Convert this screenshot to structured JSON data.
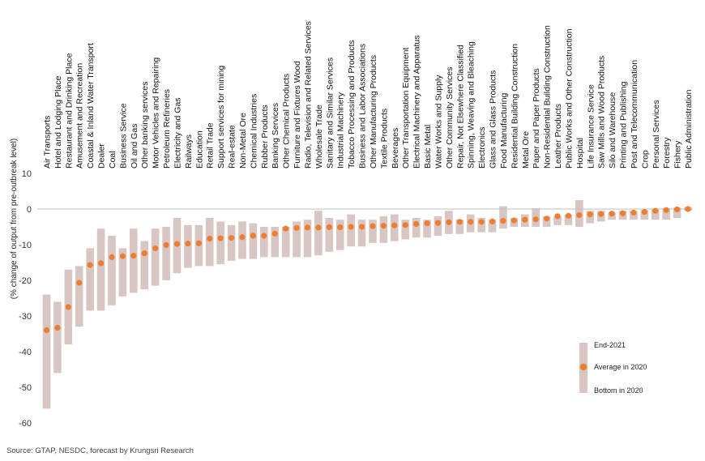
{
  "chart_data": {
    "type": "range-dot",
    "ylabel": "(% change of output from pre-outbreak level)",
    "ylim": [
      -60,
      10
    ],
    "yticks": [
      10,
      0,
      -10,
      -20,
      -30,
      -40,
      -50,
      -60
    ],
    "grid": false,
    "legend_position": "bottom-right",
    "legend": {
      "end": "End-2021",
      "avg": "Average in 2020",
      "bottom": "Bottom in 2020"
    },
    "colors": {
      "range": "#d8c6c4",
      "avg": "#ed7d31",
      "axis": "#bfbfbf"
    },
    "source": "Source:  GTAP, NESDC, forecast by Krungsri Research",
    "categories": [
      "Air Transports",
      "Hotel and Lodging Place",
      "Restaurant and Drinking Place",
      "Amusement and Recreation",
      "Coastal & Inland Water Transport",
      "Dealer",
      "Coal",
      "Business Service",
      "Oil and Gas",
      "Other banking services",
      "Motor Vehicles and Repairing",
      "Petroleum Refineries",
      "Electricity and Gas",
      "Railways",
      "Education",
      "Retail Trade",
      "Support services for mining",
      "Real-estate",
      "Non-Metal Ore",
      "Chemical Industries",
      "Rubber Products",
      "Banking Services",
      "Other Chemical Products",
      "Furniture and Fixtures Wood",
      "Radio, Television and Related Services",
      "Wholesale Trade",
      "Sanitary and Similar Services",
      "Industrial Machinery",
      "Tobacco Processing and Products",
      "Business and Labor Associations",
      "Other Manufacturing Products",
      "Textile Products",
      "Beverages",
      "Other Transportation Equipment",
      "Electrical Machinery and Apparatus",
      "Basic Metal",
      "Water Works and Supply",
      "Other Community Services",
      "Repair, Not Elsewhere Classified",
      "Spinning, Weaving and Bleaching",
      "Electronics",
      "Glass and Glass Products",
      "Food Manufacturing",
      "Residential Building Construction",
      "Metal Ore",
      "Paper and Paper Products",
      "Non-Residential Building Construction",
      "Leather Products",
      "Public Works and Other Construction",
      "Hospital",
      "Life Insurance Service",
      "Saw Mills and Wood Products",
      "Silo and Warehouse",
      "Printing and Publishing",
      "Post and Telecommunication",
      "Crop",
      "Personal Services",
      "Forestry",
      "Fishery",
      "Public Administration"
    ],
    "series": [
      {
        "name": "End-2021",
        "values": [
          -24,
          -26,
          -17,
          -16,
          -11,
          -5.5,
          -7.5,
          -11,
          -5.5,
          -9,
          -5.5,
          -5,
          -2.5,
          -4.5,
          -4.5,
          -2.5,
          -3.5,
          -4.5,
          -3.5,
          -4,
          -5,
          -5,
          -5,
          -3.5,
          -3,
          -0.5,
          -2.5,
          -3,
          -1.5,
          -3,
          -3,
          -2,
          -1.5,
          -3,
          -2.5,
          -3,
          -2,
          -0.5,
          -3,
          -1.5,
          -2.5,
          -3,
          0.8,
          -2.5,
          -1.5,
          0.2,
          -2,
          -2,
          -1.5,
          2.5,
          -0.5,
          -0.5,
          -1,
          -0.5,
          -0.5,
          -0.3,
          0,
          0.2,
          0.4,
          0.6
        ]
      },
      {
        "name": "Average in 2020",
        "values": [
          -34,
          -33.3,
          -27.5,
          -20.7,
          -15.7,
          -15.2,
          -13.5,
          -13.2,
          -13.1,
          -12.4,
          -11,
          -10.1,
          -9.8,
          -9.7,
          -9.6,
          -8.3,
          -8.2,
          -8.1,
          -7.9,
          -7.5,
          -7.5,
          -6.9,
          -5.5,
          -5.3,
          -5.2,
          -5.2,
          -5.1,
          -5.1,
          -5,
          -5,
          -4.8,
          -4.7,
          -4.6,
          -4.5,
          -4.2,
          -4,
          -3.9,
          -3.7,
          -3.6,
          -3.6,
          -3.6,
          -3.5,
          -3.3,
          -3.2,
          -3,
          -2.9,
          -2.7,
          -2,
          -1.9,
          -1.7,
          -1.5,
          -1.4,
          -1.3,
          -1.2,
          -1,
          -0.8,
          -0.5,
          -0.3,
          -0.1,
          0
        ]
      },
      {
        "name": "Bottom in 2020",
        "values": [
          -56,
          -46,
          -38,
          -33,
          -28.5,
          -28.5,
          -27,
          -24.5,
          -23.5,
          -22.5,
          -21.5,
          -20,
          -18,
          -16.5,
          -16,
          -16,
          -15.5,
          -14.5,
          -14,
          -14,
          -13.5,
          -13.5,
          -13.5,
          -13.5,
          -13.5,
          -13,
          -12,
          -11.5,
          -10.5,
          -10.5,
          -9.5,
          -9.5,
          -9,
          -8.5,
          -8,
          -8,
          -7.5,
          -7,
          -7,
          -6.5,
          -6.5,
          -6.5,
          -5.5,
          -5,
          -5,
          -5,
          -5,
          -4.5,
          -4.5,
          -5,
          -4,
          -3.5,
          -3,
          -3,
          -3,
          -3,
          -3,
          -3,
          -2.5,
          -0.5
        ]
      }
    ]
  }
}
